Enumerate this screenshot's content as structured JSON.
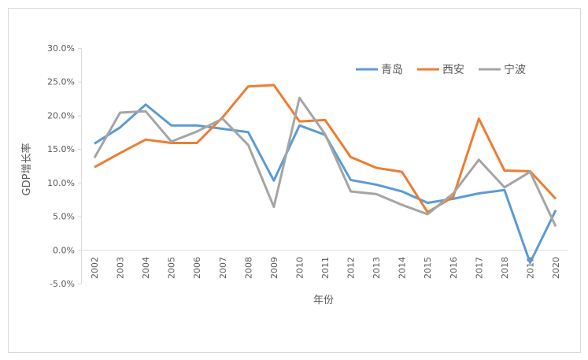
{
  "chart_data": {
    "type": "line",
    "title": "",
    "xlabel": "年份",
    "ylabel": "GDP增长率",
    "ylim": [
      -5,
      30
    ],
    "yticks": [
      "-5.0%",
      "0.0%",
      "5.0%",
      "10.0%",
      "15.0%",
      "20.0%",
      "25.0%",
      "30.0%"
    ],
    "grid": false,
    "legend_position": "top-right",
    "categories": [
      "2002",
      "2003",
      "2004",
      "2005",
      "2006",
      "2007",
      "2008",
      "2009",
      "2010",
      "2011",
      "2012",
      "2013",
      "2014",
      "2015",
      "2016",
      "2017",
      "2018",
      "2019",
      "2020"
    ],
    "series": [
      {
        "name": "青岛",
        "color": "#5b9bd5",
        "values": [
          15.8,
          18.2,
          21.6,
          18.5,
          18.5,
          18.0,
          17.5,
          10.3,
          18.5,
          17.1,
          10.4,
          9.7,
          8.7,
          7.0,
          7.6,
          8.4,
          8.9,
          -1.9,
          5.9
        ]
      },
      {
        "name": "西安",
        "color": "#ed7d31",
        "values": [
          12.3,
          14.4,
          16.4,
          15.9,
          15.9,
          19.7,
          24.3,
          24.5,
          19.1,
          19.3,
          13.8,
          12.2,
          11.6,
          5.6,
          7.9,
          19.5,
          11.8,
          11.7,
          7.6
        ]
      },
      {
        "name": "宁波",
        "color": "#a5a5a5",
        "values": [
          13.7,
          20.4,
          20.6,
          16.1,
          17.6,
          19.5,
          15.6,
          6.4,
          22.6,
          17.2,
          8.7,
          8.3,
          6.7,
          5.3,
          8.4,
          13.4,
          9.3,
          11.6,
          3.5
        ]
      }
    ]
  }
}
